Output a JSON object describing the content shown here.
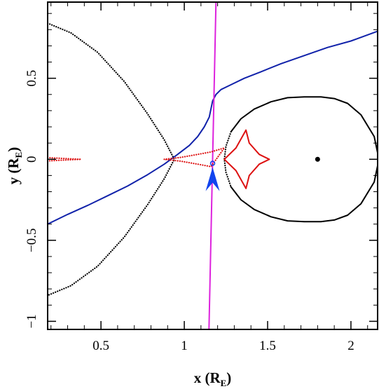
{
  "chart_data": {
    "type": "line",
    "title": "",
    "xlabel": "x (R",
    "xlabel_sub": "E",
    "xlabel_suffix": ")",
    "ylabel": "y (R",
    "ylabel_sub": "E",
    "ylabel_suffix": ")",
    "xlim": [
      0.18,
      2.16
    ],
    "ylim": [
      -1.05,
      0.97
    ],
    "x_ticks": [
      0.5,
      1,
      1.5,
      2
    ],
    "x_tick_labels": [
      "0.5",
      "1",
      "1.5",
      "2"
    ],
    "y_ticks": [
      -1,
      -0.5,
      0,
      0.5
    ],
    "y_tick_labels": [
      "−1",
      "−0.5",
      "0",
      "0.5"
    ],
    "grid": false,
    "legend": "none",
    "colors": {
      "axes": "#000000",
      "caustic": "#dd1111",
      "trajectory": "#1122aa",
      "critical_curve": "#000000",
      "track_line": "#dd22dd",
      "arrow": "#1144ee"
    },
    "series": [
      {
        "kind": "critical-curve-inner",
        "style": "dotted",
        "color": "#000000",
        "x": [
          0.18,
          0.32,
          0.48,
          0.64,
          0.78,
          0.88,
          0.94,
          0.88,
          0.78,
          0.64,
          0.48,
          0.32,
          0.18
        ],
        "y": [
          0.84,
          0.78,
          0.66,
          0.48,
          0.28,
          0.12,
          0.0,
          -0.12,
          -0.28,
          -0.48,
          -0.66,
          -0.78,
          -0.84
        ]
      },
      {
        "kind": "critical-curve-outer-dotted",
        "style": "dotted",
        "color": "#000000",
        "x": [
          1.28,
          1.25,
          1.24,
          1.25,
          1.28
        ],
        "y": [
          0.17,
          0.08,
          0.0,
          -0.08,
          -0.17
        ]
      },
      {
        "kind": "critical-curve-outer",
        "style": "solid",
        "color": "#000000",
        "x": [
          1.28,
          1.34,
          1.42,
          1.52,
          1.62,
          1.72,
          1.82,
          1.9,
          1.98,
          2.06,
          2.14,
          2.16,
          2.16,
          2.14,
          2.06,
          1.98,
          1.9,
          1.82,
          1.72,
          1.62,
          1.52,
          1.42,
          1.34,
          1.28
        ],
        "y": [
          0.17,
          0.25,
          0.31,
          0.355,
          0.38,
          0.385,
          0.385,
          0.375,
          0.345,
          0.275,
          0.14,
          0.04,
          -0.04,
          -0.14,
          -0.275,
          -0.345,
          -0.375,
          -0.385,
          -0.385,
          -0.38,
          -0.355,
          -0.31,
          -0.25,
          -0.17
        ]
      },
      {
        "kind": "trajectory",
        "style": "solid",
        "color": "#1122aa",
        "x": [
          0.18,
          0.3,
          0.42,
          0.54,
          0.66,
          0.78,
          0.88,
          0.96,
          1.03,
          1.08,
          1.12,
          1.15,
          1.16,
          1.17,
          1.19,
          1.22,
          1.28,
          1.36,
          1.46,
          1.58,
          1.72,
          1.86,
          2.0,
          2.16
        ],
        "y": [
          -0.4,
          -0.34,
          -0.285,
          -0.225,
          -0.165,
          -0.095,
          -0.03,
          0.03,
          0.085,
          0.14,
          0.2,
          0.26,
          0.31,
          0.36,
          0.4,
          0.43,
          0.46,
          0.5,
          0.54,
          0.59,
          0.64,
          0.69,
          0.73,
          0.79
        ]
      },
      {
        "kind": "track-line",
        "style": "solid",
        "color": "#dd22dd",
        "x": [
          1.148,
          1.19
        ],
        "y": [
          -1.05,
          0.97
        ]
      },
      {
        "kind": "caustic",
        "style": "solid",
        "color": "#dd1111",
        "x": [
          1.24,
          1.31,
          1.37,
          1.39,
          1.45,
          1.51,
          1.45,
          1.39,
          1.37,
          1.31,
          1.24
        ],
        "y": [
          0.0,
          0.07,
          0.18,
          0.1,
          0.03,
          0.0,
          -0.03,
          -0.1,
          -0.18,
          -0.07,
          0.0
        ]
      },
      {
        "kind": "caustic-wing-center",
        "style": "dotted",
        "color": "#dd1111",
        "x": [
          0.88,
          0.98,
          1.08,
          1.16,
          1.24,
          1.16,
          1.08,
          0.98,
          0.88
        ],
        "y": [
          0.0,
          0.012,
          0.03,
          0.045,
          0.07,
          -0.045,
          -0.03,
          -0.012,
          0.0
        ]
      },
      {
        "kind": "caustic-wing-left",
        "style": "dotted",
        "color": "#dd1111",
        "x": [
          0.18,
          0.26,
          0.38,
          0.26,
          0.18
        ],
        "y": [
          0.01,
          0.006,
          0.0,
          -0.006,
          -0.01
        ]
      }
    ],
    "points": [
      {
        "kind": "lens-mass",
        "x": 1.8,
        "y": 0.0,
        "color": "#000000",
        "marker": "filled-circle"
      },
      {
        "kind": "source-position",
        "x": 1.17,
        "y": -0.025,
        "color": "#1144ee",
        "marker": "open-circle"
      },
      {
        "kind": "direction-arrow",
        "x": 1.17,
        "y": -0.075,
        "color": "#1144ee",
        "marker": "arrowhead-down"
      }
    ]
  }
}
